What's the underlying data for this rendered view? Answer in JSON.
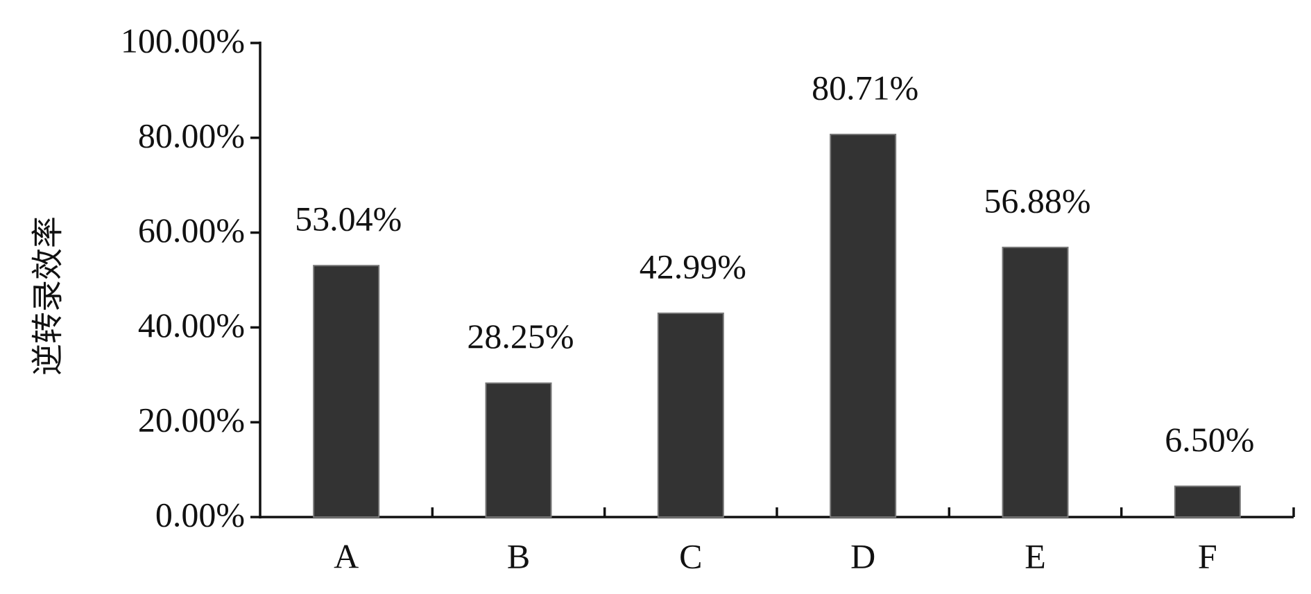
{
  "chart_data": {
    "type": "bar",
    "y_label": "逆转录效率",
    "categories": [
      "A",
      "B",
      "C",
      "D",
      "E",
      "F"
    ],
    "values": [
      53.04,
      28.25,
      42.99,
      80.71,
      56.88,
      6.5
    ],
    "value_labels": [
      "53.04%",
      "28.25%",
      "42.99%",
      "80.71%",
      "56.88%",
      "6.50%"
    ],
    "color": "#333333",
    "ylim": [
      0,
      100
    ],
    "yticks": [
      {
        "value": 0,
        "label": "0.00%"
      },
      {
        "value": 20,
        "label": "20.00%"
      },
      {
        "value": 40,
        "label": "40.00%"
      },
      {
        "value": 60,
        "label": "60.00%"
      },
      {
        "value": 80,
        "label": "80.00%"
      },
      {
        "value": 100,
        "label": "100.00%"
      }
    ],
    "grid": false
  }
}
